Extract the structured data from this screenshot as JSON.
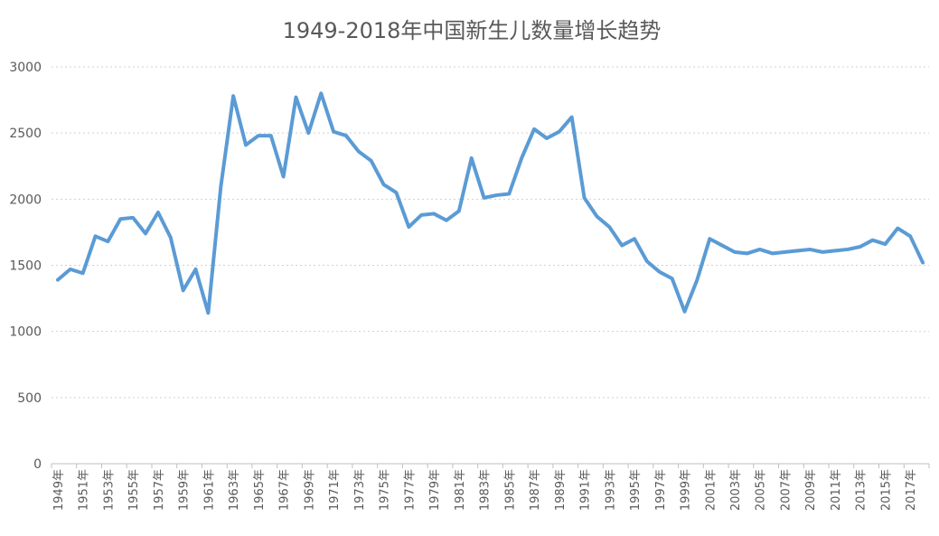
{
  "chart_data": {
    "type": "line",
    "title": "1949-2018年中国新生儿数量增长趋势",
    "xlabel": "",
    "ylabel": "",
    "ylim": [
      0,
      3000
    ],
    "yticks": [
      0,
      500,
      1000,
      1500,
      2000,
      2500,
      3000
    ],
    "grid": true,
    "legend": "none",
    "color": "#5b9bd5",
    "categories": [
      "1949年",
      "1950年",
      "1951年",
      "1952年",
      "1953年",
      "1954年",
      "1955年",
      "1956年",
      "1957年",
      "1958年",
      "1959年",
      "1960年",
      "1961年",
      "1962年",
      "1963年",
      "1964年",
      "1965年",
      "1966年",
      "1967年",
      "1968年",
      "1969年",
      "1970年",
      "1971年",
      "1972年",
      "1973年",
      "1974年",
      "1975年",
      "1976年",
      "1977年",
      "1978年",
      "1979年",
      "1980年",
      "1981年",
      "1982年",
      "1983年",
      "1984年",
      "1985年",
      "1986年",
      "1987年",
      "1988年",
      "1989年",
      "1990年",
      "1991年",
      "1992年",
      "1993年",
      "1994年",
      "1995年",
      "1996年",
      "1997年",
      "1998年",
      "1999年",
      "2000年",
      "2001年",
      "2002年",
      "2003年",
      "2004年",
      "2005年",
      "2006年",
      "2007年",
      "2008年",
      "2009年",
      "2010年",
      "2011年",
      "2012年",
      "2013年",
      "2014年",
      "2015年",
      "2016年",
      "2017年",
      "2018年"
    ],
    "tick_labels": [
      "1949年",
      "1951年",
      "1953年",
      "1955年",
      "1957年",
      "1959年",
      "1961年",
      "1963年",
      "1965年",
      "1967年",
      "1969年",
      "1971年",
      "1973年",
      "1975年",
      "1977年",
      "1979年",
      "1981年",
      "1983年",
      "1985年",
      "1987年",
      "1989年",
      "1991年",
      "1993年",
      "1995年",
      "1997年",
      "1999年",
      "2001年",
      "2003年",
      "2005年",
      "2007年",
      "2009年",
      "2011年",
      "2013年",
      "2015年",
      "2017年"
    ],
    "series": [
      {
        "values": [
          1390,
          1470,
          1440,
          1720,
          1680,
          1850,
          1860,
          1740,
          1900,
          1710,
          1310,
          1470,
          1140,
          2090,
          2780,
          2410,
          2480,
          2480,
          2170,
          2770,
          2500,
          2800,
          2510,
          2480,
          2360,
          2290,
          2110,
          2050,
          1790,
          1880,
          1890,
          1840,
          1910,
          2310,
          2010,
          2030,
          2040,
          2310,
          2530,
          2460,
          2510,
          2620,
          2010,
          1870,
          1790,
          1650,
          1700,
          1530,
          1450,
          1400,
          1150,
          1390,
          1700,
          1650,
          1600,
          1590,
          1620,
          1590,
          1600,
          1610,
          1620,
          1600,
          1610,
          1620,
          1640,
          1690,
          1660,
          1780,
          1720,
          1520
        ]
      }
    ]
  }
}
